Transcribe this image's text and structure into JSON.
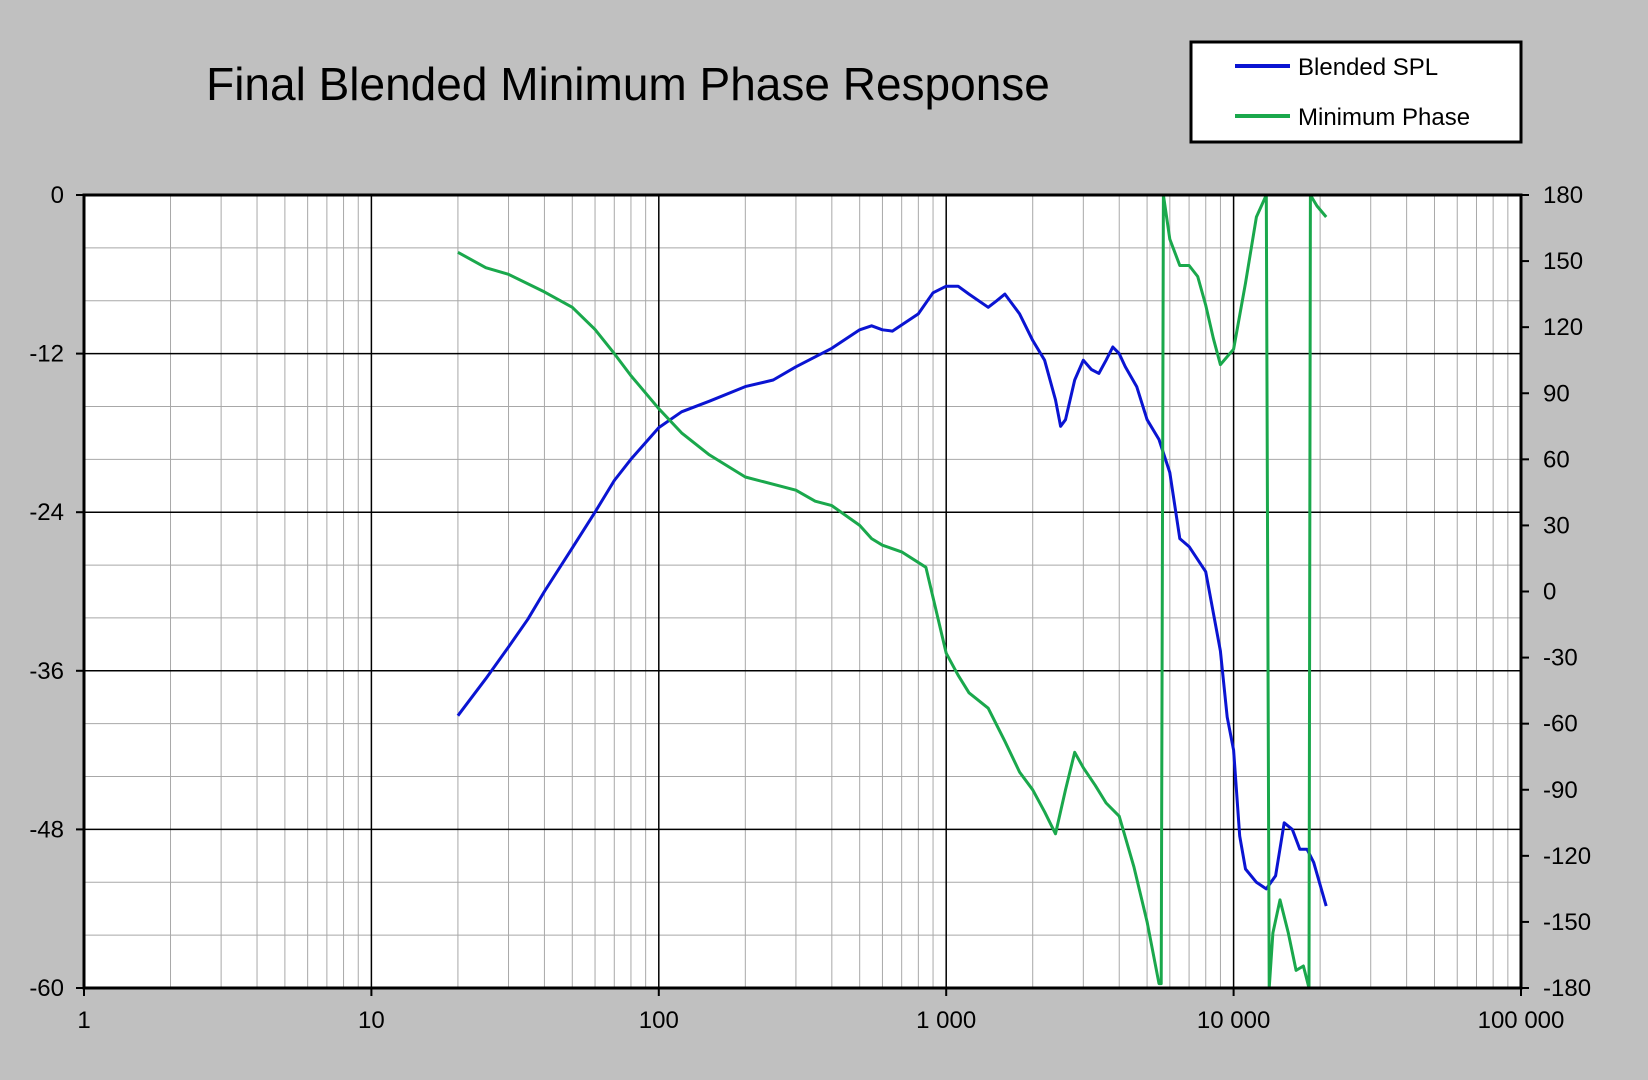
{
  "chart_data": {
    "type": "line",
    "title": "Final Blended Minimum Phase Response",
    "x_scale": "log",
    "xlim": [
      1,
      100000
    ],
    "ylim_left": [
      -60,
      0
    ],
    "ylim_right": [
      -180,
      180
    ],
    "grid": true,
    "legend_position": "top-right",
    "x_tick_labels": [
      "1",
      "10",
      "100",
      "1 000",
      "10 000",
      "100 000"
    ],
    "x_tick_values": [
      1,
      10,
      100,
      1000,
      10000,
      100000
    ],
    "left_tick_labels": [
      "0",
      "-12",
      "-24",
      "-36",
      "-48",
      "-60"
    ],
    "left_tick_values": [
      0,
      -12,
      -24,
      -36,
      -48,
      -60
    ],
    "right_tick_labels": [
      "180",
      "150",
      "120",
      "90",
      "60",
      "30",
      "0",
      "-30",
      "-60",
      "-90",
      "-120",
      "-150",
      "-180"
    ],
    "right_tick_values": [
      180,
      150,
      120,
      90,
      60,
      30,
      0,
      -30,
      -60,
      -90,
      -120,
      -150,
      -180
    ],
    "series": [
      {
        "name": "Blended SPL",
        "axis": "left",
        "color": "#0a14d2",
        "points": [
          [
            20,
            -39.4
          ],
          [
            25,
            -36.6
          ],
          [
            30,
            -34.2
          ],
          [
            35,
            -32.1
          ],
          [
            40,
            -30.0
          ],
          [
            50,
            -26.7
          ],
          [
            60,
            -24.0
          ],
          [
            70,
            -21.6
          ],
          [
            80,
            -20.0
          ],
          [
            100,
            -17.6
          ],
          [
            120,
            -16.4
          ],
          [
            150,
            -15.6
          ],
          [
            200,
            -14.5
          ],
          [
            250,
            -14.0
          ],
          [
            300,
            -13.0
          ],
          [
            400,
            -11.6
          ],
          [
            500,
            -10.2
          ],
          [
            550,
            -9.9
          ],
          [
            600,
            -10.2
          ],
          [
            650,
            -10.3
          ],
          [
            800,
            -9.0
          ],
          [
            900,
            -7.4
          ],
          [
            1000,
            -6.9
          ],
          [
            1100,
            -6.9
          ],
          [
            1200,
            -7.5
          ],
          [
            1400,
            -8.5
          ],
          [
            1500,
            -8.0
          ],
          [
            1600,
            -7.5
          ],
          [
            1800,
            -9.0
          ],
          [
            2000,
            -11.0
          ],
          [
            2200,
            -12.5
          ],
          [
            2400,
            -15.5
          ],
          [
            2500,
            -17.5
          ],
          [
            2600,
            -17.0
          ],
          [
            2800,
            -14.0
          ],
          [
            3000,
            -12.5
          ],
          [
            3200,
            -13.2
          ],
          [
            3400,
            -13.5
          ],
          [
            3600,
            -12.5
          ],
          [
            3800,
            -11.5
          ],
          [
            4000,
            -12.0
          ],
          [
            4200,
            -13.0
          ],
          [
            4600,
            -14.5
          ],
          [
            5000,
            -17.0
          ],
          [
            5500,
            -18.5
          ],
          [
            6000,
            -21.0
          ],
          [
            6500,
            -26.0
          ],
          [
            7000,
            -26.6
          ],
          [
            8000,
            -28.5
          ],
          [
            9000,
            -34.5
          ],
          [
            9500,
            -39.5
          ],
          [
            10000,
            -42.0
          ],
          [
            10500,
            -48.5
          ],
          [
            11000,
            -51.0
          ],
          [
            12000,
            -52.0
          ],
          [
            13000,
            -52.5
          ],
          [
            14000,
            -51.5
          ],
          [
            15000,
            -47.5
          ],
          [
            16000,
            -48.0
          ],
          [
            17000,
            -49.5
          ],
          [
            18000,
            -49.5
          ],
          [
            19000,
            -50.5
          ],
          [
            21000,
            -53.8
          ]
        ]
      },
      {
        "name": "Minimum Phase",
        "axis": "right",
        "color": "#1aa84c",
        "points": [
          [
            20,
            154
          ],
          [
            25,
            147
          ],
          [
            30,
            144
          ],
          [
            40,
            136
          ],
          [
            50,
            129
          ],
          [
            60,
            119
          ],
          [
            70,
            108
          ],
          [
            80,
            98
          ],
          [
            100,
            83
          ],
          [
            120,
            72
          ],
          [
            150,
            62
          ],
          [
            200,
            52
          ],
          [
            300,
            46
          ],
          [
            350,
            41
          ],
          [
            400,
            39
          ],
          [
            500,
            30
          ],
          [
            550,
            24
          ],
          [
            600,
            21
          ],
          [
            700,
            18
          ],
          [
            850,
            11
          ],
          [
            1000,
            -28
          ],
          [
            1100,
            -38
          ],
          [
            1200,
            -46
          ],
          [
            1400,
            -53
          ],
          [
            1600,
            -68
          ],
          [
            1800,
            -82
          ],
          [
            2000,
            -90
          ],
          [
            2200,
            -100
          ],
          [
            2400,
            -110
          ],
          [
            2600,
            -90
          ],
          [
            2800,
            -73
          ],
          [
            3000,
            -80
          ],
          [
            3300,
            -88
          ],
          [
            3600,
            -96
          ],
          [
            4000,
            -102
          ],
          [
            4500,
            -125
          ],
          [
            5000,
            -150
          ],
          [
            5500,
            -178
          ],
          [
            5600,
            -178
          ],
          [
            5700,
            180
          ],
          [
            6000,
            160
          ],
          [
            6500,
            148
          ],
          [
            7000,
            148
          ],
          [
            7500,
            143
          ],
          [
            8000,
            130
          ],
          [
            8500,
            115
          ],
          [
            9000,
            103
          ],
          [
            10000,
            110
          ],
          [
            11000,
            140
          ],
          [
            12000,
            170
          ],
          [
            13000,
            180
          ],
          [
            13300,
            -180
          ],
          [
            13700,
            -155
          ],
          [
            14500,
            -140
          ],
          [
            15500,
            -155
          ],
          [
            16500,
            -172
          ],
          [
            17500,
            -170
          ],
          [
            18300,
            -180
          ],
          [
            18500,
            180
          ],
          [
            19500,
            175
          ],
          [
            21000,
            170
          ]
        ]
      }
    ]
  }
}
